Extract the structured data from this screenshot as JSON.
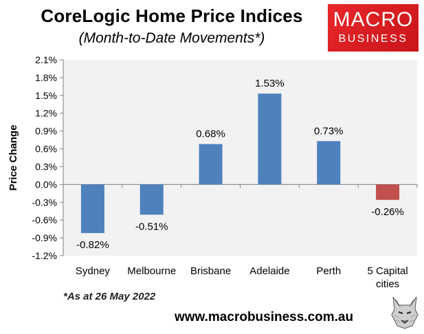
{
  "title": "CoreLogic Home Price Indices",
  "subtitle": "(Month-to-Date Movements*)",
  "logo": {
    "line1": "MACRO",
    "line2": "BUSINESS"
  },
  "footnote": "*As at 26 May 2022",
  "website": "www.macrobusiness.com.au",
  "chart_data": {
    "type": "bar",
    "categories": [
      "Sydney",
      "Melbourne",
      "Brisbane",
      "Adelaide",
      "Perth",
      "5 Capital cities"
    ],
    "category_lines": [
      [
        "Sydney"
      ],
      [
        "Melbourne"
      ],
      [
        "Brisbane"
      ],
      [
        "Adelaide"
      ],
      [
        "Perth"
      ],
      [
        "5 Capital",
        "cities"
      ]
    ],
    "values": [
      -0.82,
      -0.51,
      0.68,
      1.53,
      0.73,
      -0.26
    ],
    "data_labels": [
      "-0.82%",
      "-0.51%",
      "0.68%",
      "1.53%",
      "0.73%",
      "-0.26%"
    ],
    "bar_colors": [
      "#4f81bd",
      "#4f81bd",
      "#4f81bd",
      "#4f81bd",
      "#4f81bd",
      "#c0504d"
    ],
    "ylabel": "Price Change",
    "xlabel": "",
    "ylim": [
      -1.2,
      2.1
    ],
    "yticks": [
      2.1,
      1.8,
      1.5,
      1.2,
      0.9,
      0.6,
      0.3,
      0.0,
      -0.3,
      -0.6,
      -0.9,
      -1.2
    ],
    "ytick_labels": [
      "2.1%",
      "1.8%",
      "1.5%",
      "1.2%",
      "0.9%",
      "0.6%",
      "0.3%",
      "0.0%",
      "-0.3%",
      "-0.6%",
      "-0.9%",
      "-1.2%"
    ],
    "plot_background": "#f2f2f2",
    "grid": false,
    "legend": "none"
  }
}
